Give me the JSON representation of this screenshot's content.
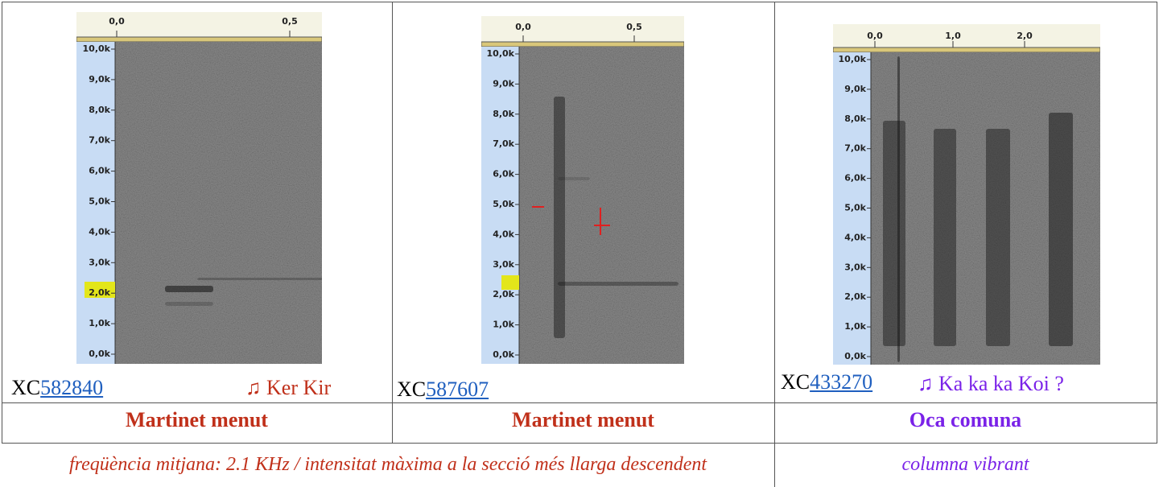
{
  "table": {
    "columns": [
      {
        "spectrogram": {
          "time_ticks": [
            "0,0",
            "0,5"
          ],
          "freq_ticks": [
            "10,0k",
            "9,0k",
            "8,0k",
            "7,0k",
            "6,0k",
            "5,0k",
            "4,0k",
            "3,0k",
            "2,0k",
            "1,0k",
            "0,0k"
          ]
        },
        "catalog_prefix": "XC",
        "catalog_id": "582840",
        "call": "♫ Ker Kir",
        "species": "Martinet menut"
      },
      {
        "spectrogram": {
          "time_ticks": [
            "0,0",
            "0,5"
          ],
          "freq_ticks": [
            "10,0k",
            "9,0k",
            "8,0k",
            "7,0k",
            "6,0k",
            "5,0k",
            "4,0k",
            "3,0k",
            "2,0k",
            "1,0k",
            "0,0k"
          ]
        },
        "catalog_prefix": "XC",
        "catalog_id": "587607",
        "species": "Martinet menut"
      },
      {
        "spectrogram": {
          "time_ticks": [
            "0,0",
            "1,0",
            "2,0"
          ],
          "freq_ticks": [
            "10,0k",
            "9,0k",
            "8,0k",
            "7,0k",
            "6,0k",
            "5,0k",
            "4,0k",
            "3,0k",
            "2,0k",
            "1,0k",
            "0,0k"
          ]
        },
        "catalog_prefix": "XC",
        "catalog_id": "433270",
        "call": "♫ Ka ka ka Koi ?",
        "species": "Oca comuna"
      }
    ],
    "notes": [
      "freqüència mitjana: 2.1 KHz / intensitat màxima a la secció més llarga descendent",
      "columna vibrant"
    ]
  }
}
